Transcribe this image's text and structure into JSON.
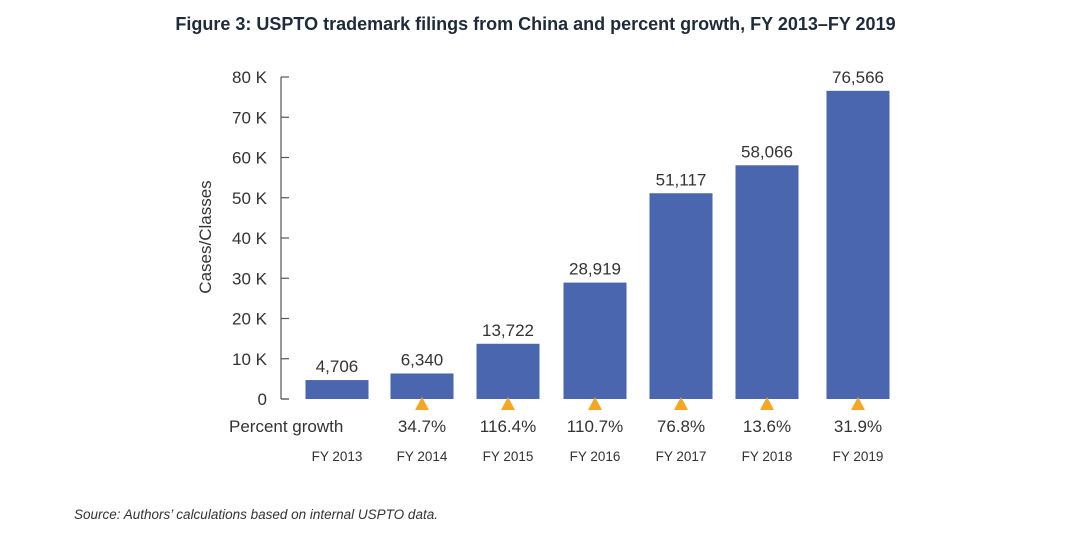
{
  "chart_data": {
    "type": "bar",
    "title": "Figure 3: USPTO trademark filings from China and percent growth, FY 2013–FY 2019",
    "ylabel": "Cases/Classes",
    "xlabel": "",
    "categories": [
      "FY 2013",
      "FY 2014",
      "FY 2015",
      "FY 2016",
      "FY 2017",
      "FY 2018",
      "FY 2019"
    ],
    "values": [
      4706,
      6340,
      13722,
      28919,
      51117,
      58066,
      76566
    ],
    "value_labels": [
      "4,706",
      "6,340",
      "13,722",
      "28,919",
      "51,117",
      "58,066",
      "76,566"
    ],
    "ylim": [
      0,
      80000
    ],
    "yticks": [
      0,
      10000,
      20000,
      30000,
      40000,
      50000,
      60000,
      70000,
      80000
    ],
    "ytick_labels": [
      "0",
      "10 K",
      "20 K",
      "30 K",
      "40 K",
      "50 K",
      "60 K",
      "70 K",
      "80 K"
    ],
    "growth_row_label": "Percent growth",
    "percent_growth": [
      "",
      "34.7%",
      "116.4%",
      "110.7%",
      "76.8%",
      "13.6%",
      "31.9%"
    ],
    "colors": {
      "bar": "#4a66ae",
      "growth_marker": "#f5a623"
    },
    "grid": false,
    "legend": "none"
  },
  "source_note": "Source: Authors’ calculations based on internal USPTO data."
}
